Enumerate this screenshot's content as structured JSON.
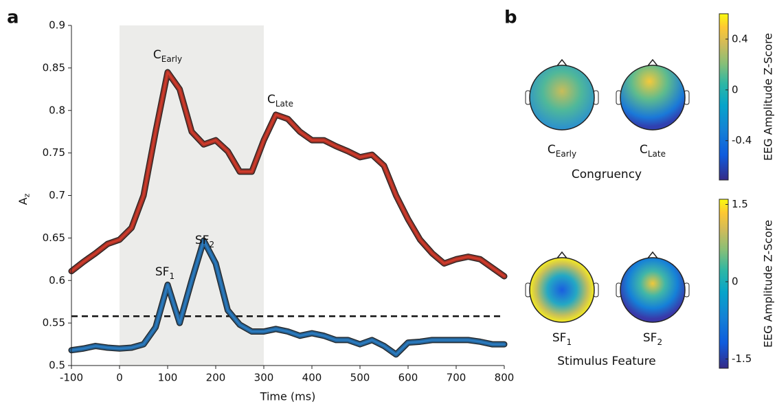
{
  "panel_labels": [
    "a",
    "b"
  ],
  "chart_data": {
    "type": "line",
    "xlabel": "Time (ms)",
    "ylabel": {
      "text": "A",
      "sub": "z"
    },
    "x": [
      -100,
      -75,
      -50,
      -25,
      0,
      25,
      50,
      75,
      100,
      125,
      150,
      175,
      200,
      225,
      250,
      275,
      300,
      325,
      350,
      375,
      400,
      425,
      450,
      475,
      500,
      525,
      550,
      575,
      600,
      625,
      650,
      675,
      700,
      725,
      750,
      775,
      800
    ],
    "series": [
      {
        "name": "Congruency",
        "color": "#d23b2b",
        "values": [
          0.611,
          0.622,
          0.632,
          0.643,
          0.648,
          0.662,
          0.7,
          0.775,
          0.845,
          0.825,
          0.775,
          0.76,
          0.765,
          0.752,
          0.728,
          0.728,
          0.765,
          0.795,
          0.79,
          0.775,
          0.765,
          0.765,
          0.758,
          0.752,
          0.745,
          0.748,
          0.735,
          0.7,
          0.672,
          0.648,
          0.632,
          0.62,
          0.625,
          0.628,
          0.625,
          0.615,
          0.605
        ]
      },
      {
        "name": "Stimulus Feature",
        "color": "#2a7cc2",
        "values": [
          0.518,
          0.52,
          0.523,
          0.521,
          0.52,
          0.521,
          0.525,
          0.545,
          0.595,
          0.55,
          0.6,
          0.647,
          0.62,
          0.565,
          0.548,
          0.54,
          0.54,
          0.543,
          0.54,
          0.535,
          0.538,
          0.535,
          0.53,
          0.53,
          0.525,
          0.53,
          0.523,
          0.513,
          0.527,
          0.528,
          0.53,
          0.53,
          0.53,
          0.53,
          0.528,
          0.525,
          0.525
        ]
      }
    ],
    "threshold": 0.558,
    "shaded_region": [
      0,
      300
    ],
    "annotations": [
      {
        "text": "C",
        "sub": "Early"
      },
      {
        "text": "C",
        "sub": "Late"
      },
      {
        "text": "SF",
        "sub": "1"
      },
      {
        "text": "SF",
        "sub": "2"
      }
    ],
    "xlim": [
      -100,
      800
    ],
    "xticks": [
      -100,
      0,
      100,
      200,
      300,
      400,
      500,
      600,
      700,
      800
    ],
    "ylim": [
      0.5,
      0.9
    ],
    "yticks": [
      0.5,
      0.55,
      0.6,
      0.65,
      0.7,
      0.75,
      0.8,
      0.85,
      0.9
    ]
  },
  "panel_b": {
    "maps": [
      {
        "text": "C",
        "sub": "Early"
      },
      {
        "text": "C",
        "sub": "Late"
      },
      {
        "text": "SF",
        "sub": "1"
      },
      {
        "text": "SF",
        "sub": "2"
      }
    ],
    "group_labels": [
      "Congruency",
      "Stimulus Feature"
    ],
    "colorbars": [
      {
        "label": "EEG Amplitude Z-Score",
        "lim": [
          -0.71,
          0.6
        ],
        "ticks": [
          0.4,
          0,
          -0.4
        ]
      },
      {
        "label": "EEG Amplitude Z-Score",
        "lim": [
          -1.68,
          1.6
        ],
        "ticks": [
          1.5,
          0,
          -1.5
        ]
      }
    ]
  }
}
